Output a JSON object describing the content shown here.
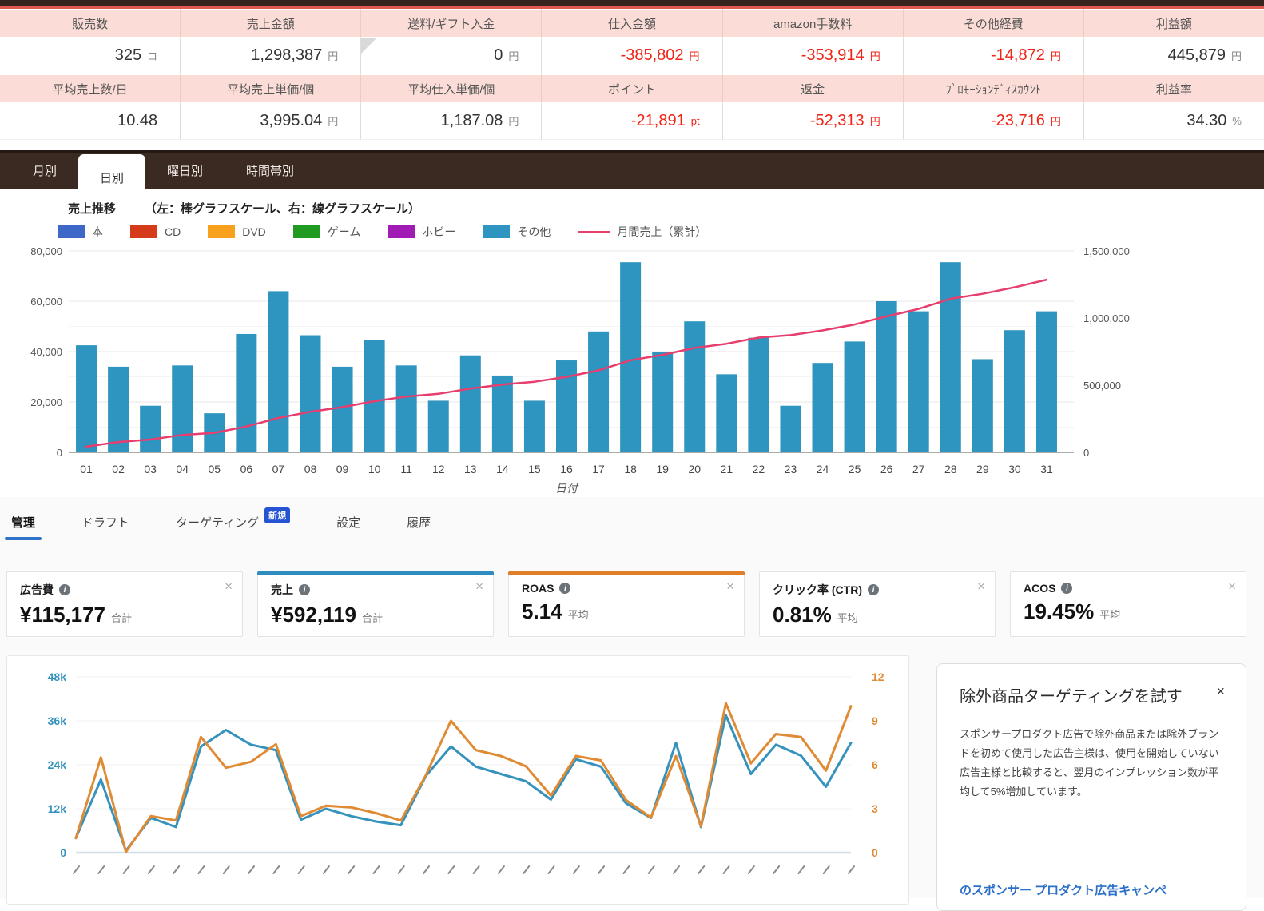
{
  "summary_table": {
    "header1": [
      "販売数",
      "売上金額",
      "送料/ギフト入金",
      "仕入金額",
      "amazon手数料",
      "その他経費",
      "利益額"
    ],
    "values1": [
      {
        "value": "325",
        "unit": "コ"
      },
      {
        "value": "1,298,387",
        "unit": "円"
      },
      {
        "value": "0",
        "unit": "円",
        "notch": true
      },
      {
        "value": "-385,802",
        "unit": "円",
        "neg": true
      },
      {
        "value": "-353,914",
        "unit": "円",
        "neg": true
      },
      {
        "value": "-14,872",
        "unit": "円",
        "neg": true
      },
      {
        "value": "445,879",
        "unit": "円"
      }
    ],
    "header2": [
      "平均売上数/日",
      "平均売上単価/個",
      "平均仕入単価/個",
      "ポイント",
      "返金",
      "ﾌﾟﾛﾓｰｼｮﾝﾃﾞｨｽｶｳﾝﾄ",
      "利益率"
    ],
    "values2": [
      {
        "value": "10.48",
        "unit": ""
      },
      {
        "value": "3,995.04",
        "unit": "円"
      },
      {
        "value": "1,187.08",
        "unit": "円"
      },
      {
        "value": "-21,891",
        "unit": "pt",
        "neg": true
      },
      {
        "value": "-52,313",
        "unit": "円",
        "neg": true
      },
      {
        "value": "-23,716",
        "unit": "円",
        "neg": true
      },
      {
        "value": "34.30",
        "unit": "%"
      }
    ]
  },
  "bar_section": {
    "tabs": [
      {
        "label": "月別",
        "active": false
      },
      {
        "label": "日別",
        "active": true
      },
      {
        "label": "曜日別",
        "active": false
      },
      {
        "label": "時間帯別",
        "active": false
      }
    ],
    "title": "売上推移",
    "subtitle": "（左：棒グラフスケール、右：線グラフスケール）",
    "legend": [
      {
        "label": "本",
        "color": "#3e68c8"
      },
      {
        "label": "CD",
        "color": "#d53a1b"
      },
      {
        "label": "DVD",
        "color": "#f7a11c"
      },
      {
        "label": "ゲーム",
        "color": "#209a20"
      },
      {
        "label": "ホビー",
        "color": "#a11cb5"
      },
      {
        "label": "その他",
        "color": "#2e95c0"
      }
    ],
    "line_legend": {
      "label": "月間売上（累計）",
      "color": "#e73e6e"
    }
  },
  "chart_data": [
    {
      "type": "bar",
      "title": "売上推移（日別）",
      "categories": [
        "01",
        "02",
        "03",
        "04",
        "05",
        "06",
        "07",
        "08",
        "09",
        "10",
        "11",
        "12",
        "13",
        "14",
        "15",
        "16",
        "17",
        "18",
        "19",
        "20",
        "21",
        "22",
        "23",
        "24",
        "25",
        "26",
        "27",
        "28",
        "29",
        "30",
        "31"
      ],
      "bar_series": {
        "name": "その他",
        "color": "#2e95c0",
        "values": [
          42500,
          34000,
          18500,
          34500,
          15500,
          47000,
          64000,
          46500,
          34000,
          44500,
          34500,
          20500,
          38500,
          30500,
          20500,
          36500,
          48000,
          75500,
          40000,
          52000,
          31000,
          45500,
          18500,
          35500,
          44000,
          60000,
          56000,
          75500,
          37000,
          48500,
          56000
        ]
      },
      "line_series": {
        "name": "月間売上（累計）",
        "color": "#e73e6e",
        "values": [
          42500,
          76500,
          95000,
          129500,
          145000,
          192000,
          256000,
          302500,
          336500,
          381000,
          415500,
          436000,
          474500,
          505000,
          525500,
          562000,
          610000,
          685500,
          725500,
          777500,
          808500,
          854000,
          872500,
          908000,
          952000,
          1012000,
          1068000,
          1143500,
          1180500,
          1229000,
          1285000
        ]
      },
      "xlabel": "日付",
      "ylim_left": [
        0,
        80000
      ],
      "left_ticks": [
        {
          "label": "0",
          "value": 0
        },
        {
          "label": "20,000",
          "value": 20000
        },
        {
          "label": "40,000",
          "value": 40000
        },
        {
          "label": "60,000",
          "value": 60000
        },
        {
          "label": "80,000",
          "value": 80000
        }
      ],
      "ylim_right": [
        0,
        1500000
      ],
      "right_ticks": [
        {
          "label": "0",
          "value": 0
        },
        {
          "label": "500,000",
          "value": 500000
        },
        {
          "label": "1,000,000",
          "value": 1000000
        },
        {
          "label": "1,500,000",
          "value": 1500000
        }
      ],
      "grid": true,
      "legend_position": "top"
    },
    {
      "type": "line",
      "series": [
        {
          "name": "売上",
          "axis": "left",
          "color": "#3492bd",
          "values": [
            4000,
            20000,
            500,
            9500,
            7000,
            29000,
            33500,
            29500,
            28000,
            9000,
            12000,
            10000,
            8500,
            7500,
            21000,
            29000,
            23500,
            21500,
            19500,
            14500,
            25500,
            23500,
            13500,
            9500,
            30000,
            7000,
            37500,
            21500,
            29500,
            26500,
            18000,
            30000
          ]
        },
        {
          "name": "ROAS",
          "axis": "right",
          "color": "#e08a33",
          "values": [
            1.0,
            6.5,
            0.05,
            2.5,
            2.2,
            7.9,
            5.8,
            6.2,
            7.4,
            2.5,
            3.2,
            3.1,
            2.7,
            2.2,
            5.3,
            9.0,
            7.0,
            6.6,
            5.9,
            3.9,
            6.6,
            6.3,
            3.6,
            2.4,
            6.6,
            1.8,
            10.2,
            6.1,
            8.1,
            7.9,
            5.6,
            10.0
          ]
        }
      ],
      "ylim_left": [
        0,
        48000
      ],
      "left_ticks": [
        {
          "label": "0",
          "value": 0
        },
        {
          "label": "12k",
          "value": 12000
        },
        {
          "label": "24k",
          "value": 24000
        },
        {
          "label": "36k",
          "value": 36000
        },
        {
          "label": "48k",
          "value": 48000
        }
      ],
      "ylim_right": [
        0,
        12
      ],
      "right_ticks": [
        {
          "label": "0",
          "value": 0
        },
        {
          "label": "3",
          "value": 3
        },
        {
          "label": "6",
          "value": 6
        },
        {
          "label": "9",
          "value": 9
        },
        {
          "label": "12",
          "value": 12
        }
      ],
      "grid": true,
      "x_tick_count": 32
    }
  ],
  "ad_section": {
    "tabs": [
      {
        "label": "管理",
        "active": true
      },
      {
        "label": "ドラフト",
        "active": false
      },
      {
        "label": "ターゲティング",
        "active": false,
        "badge": "新規"
      },
      {
        "label": "設定",
        "active": false
      },
      {
        "label": "履歴",
        "active": false
      }
    ],
    "metric_cards": [
      {
        "label": "広告費",
        "value": "¥115,177",
        "suffix": "合計",
        "accent": ""
      },
      {
        "label": "売上",
        "value": "¥592,119",
        "suffix": "合計",
        "accent": "#2e8cbe"
      },
      {
        "label": "ROAS",
        "value": "5.14",
        "suffix": "平均",
        "accent": "#e07f27"
      },
      {
        "label": "クリック率 (CTR)",
        "value": "0.81%",
        "suffix": "平均",
        "accent": ""
      },
      {
        "label": "ACOS",
        "value": "19.45%",
        "suffix": "平均",
        "accent": ""
      }
    ],
    "promo": {
      "title": "除外商品ターゲティングを試す",
      "close": "×",
      "body": "スポンサープロダクト広告で除外商品または除外ブランドを初めて使用した広告主様は、使用を開始していない広告主様と比較すると、翌月のインプレッション数が平均して5%増加しています。",
      "link": "のスポンサー プロダクト広告キャンペ"
    }
  }
}
